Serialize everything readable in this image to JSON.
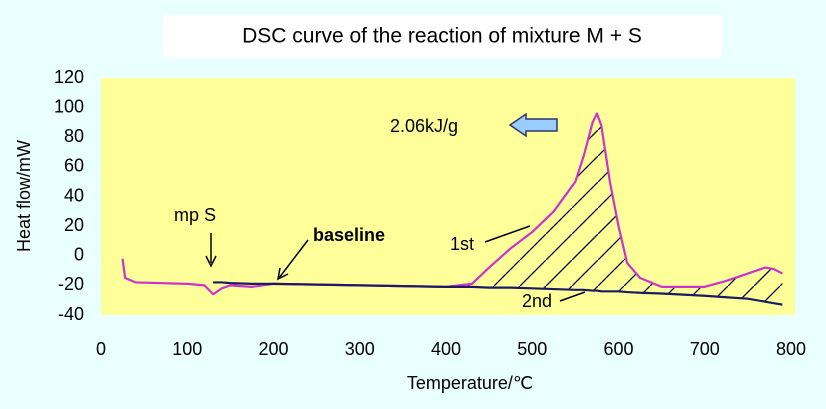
{
  "chart_data": {
    "type": "line",
    "title": "DSC curve of the reaction of mixture M + S",
    "x_label": "Temperature/℃",
    "y_label": "Heat flow/mW",
    "x": [
      25,
      28,
      40,
      100,
      120,
      130,
      140,
      150,
      175,
      200,
      300,
      400,
      430,
      450,
      475,
      500,
      525,
      550,
      560,
      570,
      575,
      580,
      590,
      600,
      610,
      625,
      650,
      700,
      725,
      750,
      770,
      780,
      790
    ],
    "series": [
      {
        "name": "1st",
        "color": "#cc33cc",
        "values": [
          -2,
          -15,
          -18,
          -19,
          -20,
          -26,
          -22,
          -20,
          -21,
          -19,
          -20,
          -21,
          -19,
          -8,
          5,
          16,
          30,
          50,
          68,
          90,
          96,
          88,
          50,
          20,
          -5,
          -15,
          -21,
          -21,
          -17,
          -12,
          -8,
          -9,
          -12
        ]
      },
      {
        "name": "2nd",
        "color": "#1a1a66",
        "values": [
          null,
          null,
          null,
          null,
          null,
          -18,
          -18,
          -18.5,
          -19,
          -19,
          -20,
          -21,
          -21,
          -21.5,
          -21.5,
          -22,
          -22.5,
          -23,
          -23,
          -23.5,
          -23.5,
          -24,
          -24,
          -24,
          -24.5,
          -25,
          -25.5,
          -27,
          -28,
          -29,
          -31,
          -32,
          -33
        ]
      }
    ],
    "annotations": [
      "2.06kJ/g",
      "mp S",
      "baseline"
    ],
    "xlim": [
      0,
      800
    ],
    "xticks": [
      0,
      100,
      200,
      300,
      400,
      500,
      600,
      700,
      800
    ],
    "ylim": [
      -40,
      120
    ],
    "yticks": [
      -40,
      -20,
      0,
      20,
      40,
      60,
      80,
      100,
      120
    ],
    "grid": false,
    "hatch": true
  }
}
